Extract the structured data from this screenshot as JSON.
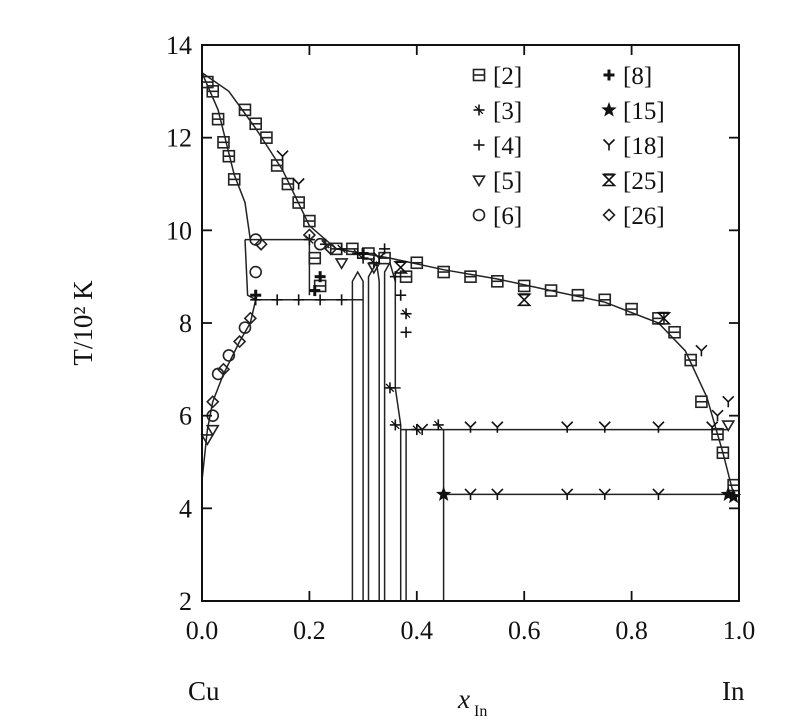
{
  "chart_data": {
    "type": "scatter",
    "title": "",
    "ylabel": "T/10² K",
    "xlabel": "x",
    "xlabel_sub": "In",
    "x_left_label": "Cu",
    "x_right_label": "In",
    "xlim": [
      0.0,
      1.0
    ],
    "ylim": [
      2,
      14
    ],
    "x_ticks": [
      "0.0",
      "0.2",
      "0.4",
      "0.6",
      "0.8",
      "1.0"
    ],
    "x_tick_values": [
      0.0,
      0.2,
      0.4,
      0.6,
      0.8,
      1.0
    ],
    "y_ticks": [
      "2",
      "4",
      "6",
      "8",
      "10",
      "12",
      "14"
    ],
    "y_tick_values": [
      2,
      4,
      6,
      8,
      10,
      12,
      14
    ],
    "legend_position": "top-right",
    "series": [
      {
        "name": "[2]",
        "marker": "square",
        "points": [
          [
            0.01,
            13.2
          ],
          [
            0.02,
            13.0
          ],
          [
            0.03,
            12.4
          ],
          [
            0.04,
            11.9
          ],
          [
            0.05,
            11.6
          ],
          [
            0.06,
            11.1
          ],
          [
            0.08,
            12.6
          ],
          [
            0.1,
            12.3
          ],
          [
            0.12,
            12.0
          ],
          [
            0.14,
            11.4
          ],
          [
            0.16,
            11.0
          ],
          [
            0.18,
            10.6
          ],
          [
            0.2,
            10.2
          ],
          [
            0.21,
            9.4
          ],
          [
            0.22,
            8.8
          ],
          [
            0.25,
            9.6
          ],
          [
            0.28,
            9.6
          ],
          [
            0.31,
            9.5
          ],
          [
            0.34,
            9.4
          ],
          [
            0.38,
            9.0
          ],
          [
            0.4,
            9.3
          ],
          [
            0.45,
            9.1
          ],
          [
            0.5,
            9.0
          ],
          [
            0.55,
            8.9
          ],
          [
            0.6,
            8.8
          ],
          [
            0.65,
            8.7
          ],
          [
            0.7,
            8.6
          ],
          [
            0.75,
            8.5
          ],
          [
            0.8,
            8.3
          ],
          [
            0.85,
            8.1
          ],
          [
            0.88,
            7.8
          ],
          [
            0.91,
            7.2
          ],
          [
            0.93,
            6.3
          ],
          [
            0.96,
            5.6
          ],
          [
            0.97,
            5.2
          ],
          [
            0.99,
            4.5
          ]
        ]
      },
      {
        "name": "[3]",
        "marker": "asterisk",
        "points": [
          [
            0.2,
            9.8
          ],
          [
            0.23,
            9.7
          ],
          [
            0.26,
            9.6
          ],
          [
            0.29,
            9.5
          ],
          [
            0.32,
            9.3
          ],
          [
            0.35,
            6.6
          ],
          [
            0.36,
            5.8
          ],
          [
            0.38,
            8.2
          ],
          [
            0.4,
            5.7
          ],
          [
            0.44,
            5.8
          ]
        ]
      },
      {
        "name": "[4]",
        "marker": "plus",
        "points": [
          [
            0.1,
            8.5
          ],
          [
            0.14,
            8.5
          ],
          [
            0.18,
            8.5
          ],
          [
            0.22,
            8.5
          ],
          [
            0.26,
            8.5
          ],
          [
            0.3,
            9.4
          ],
          [
            0.34,
            9.6
          ],
          [
            0.36,
            9.0
          ],
          [
            0.37,
            8.6
          ],
          [
            0.38,
            7.8
          ]
        ]
      },
      {
        "name": "[5]",
        "marker": "triangle-down",
        "points": [
          [
            0.01,
            5.5
          ],
          [
            0.02,
            5.7
          ],
          [
            0.26,
            9.3
          ],
          [
            0.32,
            9.2
          ],
          [
            0.98,
            5.8
          ]
        ]
      },
      {
        "name": "[6]",
        "marker": "circle",
        "points": [
          [
            0.02,
            6.0
          ],
          [
            0.03,
            6.9
          ],
          [
            0.05,
            7.3
          ],
          [
            0.08,
            7.9
          ],
          [
            0.1,
            9.1
          ],
          [
            0.1,
            9.8
          ],
          [
            0.22,
            9.7
          ]
        ]
      },
      {
        "name": "[8]",
        "marker": "bold-plus",
        "points": [
          [
            0.1,
            8.6
          ],
          [
            0.21,
            8.7
          ],
          [
            0.22,
            9.0
          ],
          [
            0.3,
            9.5
          ]
        ]
      },
      {
        "name": "[15]",
        "marker": "star",
        "points": [
          [
            0.45,
            4.3
          ],
          [
            0.98,
            4.3
          ],
          [
            0.99,
            4.25
          ]
        ]
      },
      {
        "name": "[18]",
        "marker": "y",
        "points": [
          [
            0.15,
            11.6
          ],
          [
            0.18,
            11.0
          ],
          [
            0.33,
            9.4
          ],
          [
            0.41,
            5.7
          ],
          [
            0.5,
            5.75
          ],
          [
            0.55,
            5.75
          ],
          [
            0.68,
            5.75
          ],
          [
            0.75,
            5.75
          ],
          [
            0.85,
            5.75
          ],
          [
            0.95,
            5.75
          ],
          [
            0.96,
            6.0
          ],
          [
            0.98,
            6.3
          ],
          [
            0.5,
            4.3
          ],
          [
            0.55,
            4.3
          ],
          [
            0.68,
            4.3
          ],
          [
            0.75,
            4.3
          ],
          [
            0.85,
            4.3
          ],
          [
            0.93,
            7.4
          ]
        ]
      },
      {
        "name": "[25]",
        "marker": "hourglass",
        "points": [
          [
            0.37,
            9.2
          ],
          [
            0.6,
            8.5
          ],
          [
            0.86,
            8.1
          ]
        ]
      },
      {
        "name": "[26]",
        "marker": "diamond",
        "points": [
          [
            0.02,
            6.3
          ],
          [
            0.04,
            7.0
          ],
          [
            0.07,
            7.6
          ],
          [
            0.09,
            8.1
          ],
          [
            0.11,
            9.7
          ],
          [
            0.2,
            9.9
          ],
          [
            0.24,
            9.6
          ]
        ]
      }
    ],
    "curves": [
      [
        [
          0.0,
          13.4
        ],
        [
          0.05,
          13.0
        ],
        [
          0.1,
          12.2
        ],
        [
          0.15,
          11.3
        ],
        [
          0.2,
          10.1
        ],
        [
          0.25,
          9.6
        ],
        [
          0.35,
          9.4
        ],
        [
          0.45,
          9.15
        ],
        [
          0.55,
          8.95
        ],
        [
          0.65,
          8.7
        ],
        [
          0.75,
          8.45
        ],
        [
          0.85,
          8.0
        ],
        [
          0.9,
          7.4
        ],
        [
          0.94,
          6.4
        ],
        [
          0.97,
          5.2
        ],
        [
          0.99,
          4.3
        ]
      ],
      [
        [
          0.0,
          13.4
        ],
        [
          0.03,
          12.6
        ],
        [
          0.06,
          11.2
        ],
        [
          0.08,
          10.6
        ],
        [
          0.09,
          9.8
        ]
      ],
      [
        [
          0.0,
          4.6
        ],
        [
          0.01,
          5.7
        ],
        [
          0.02,
          6.3
        ],
        [
          0.04,
          6.9
        ],
        [
          0.07,
          7.6
        ],
        [
          0.09,
          8.0
        ],
        [
          0.1,
          8.5
        ]
      ],
      [
        [
          0.08,
          9.8
        ],
        [
          0.2,
          9.8
        ]
      ],
      [
        [
          0.08,
          9.8
        ],
        [
          0.085,
          8.6
        ],
        [
          0.1,
          8.5
        ],
        [
          0.3,
          8.5
        ]
      ],
      [
        [
          0.2,
          9.8
        ],
        [
          0.2,
          8.6
        ]
      ],
      [
        [
          0.28,
          2.0
        ],
        [
          0.28,
          8.9
        ],
        [
          0.29,
          9.1
        ],
        [
          0.3,
          8.9
        ],
        [
          0.3,
          2.0
        ]
      ],
      [
        [
          0.31,
          2.0
        ],
        [
          0.31,
          9.0
        ],
        [
          0.325,
          9.3
        ],
        [
          0.33,
          8.9
        ],
        [
          0.33,
          2.0
        ]
      ],
      [
        [
          0.34,
          2.0
        ],
        [
          0.34,
          9.1
        ],
        [
          0.35,
          9.3
        ],
        [
          0.36,
          8.9
        ],
        [
          0.36,
          6.6
        ],
        [
          0.37,
          5.8
        ],
        [
          0.37,
          2.0
        ]
      ],
      [
        [
          0.35,
          6.6
        ],
        [
          0.37,
          6.6
        ]
      ],
      [
        [
          0.37,
          5.7
        ],
        [
          0.98,
          5.7
        ]
      ],
      [
        [
          0.38,
          2.0
        ],
        [
          0.38,
          5.7
        ]
      ],
      [
        [
          0.45,
          2.0
        ],
        [
          0.45,
          5.7
        ]
      ],
      [
        [
          0.45,
          4.3
        ],
        [
          0.99,
          4.3
        ]
      ]
    ]
  }
}
